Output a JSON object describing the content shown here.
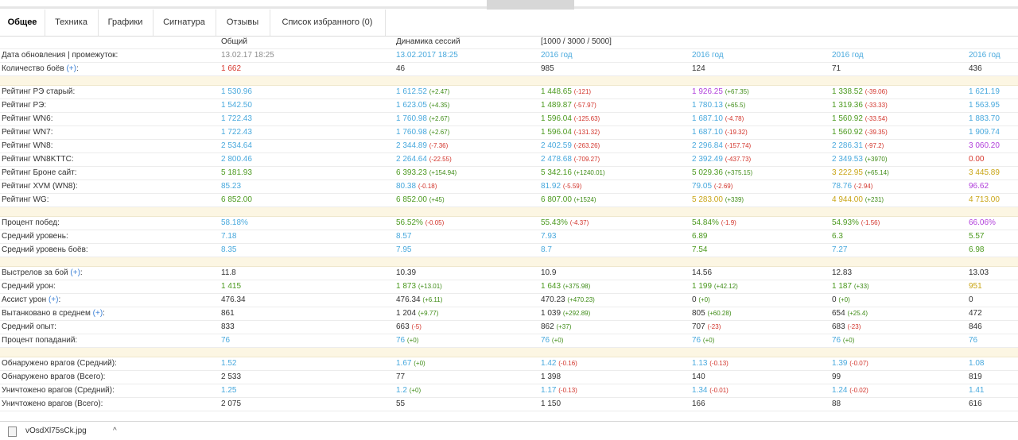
{
  "tabs": [
    "Общее",
    "Техника",
    "Графики",
    "Сигнатура",
    "Отзывы",
    "Список избранного (0)"
  ],
  "header": {
    "col1": "Общий",
    "col2": "Динамика сессий",
    "col3": "[1000 / 3000 / 5000]"
  },
  "rows": [
    {
      "type": "row",
      "label": "Дата обновления | промежуток:",
      "cells": [
        {
          "v": "13.02.17 18:25",
          "c": "gray"
        },
        {
          "v": "13.02.2017 18:25",
          "c": "c-blue"
        },
        {
          "v": "2016 год",
          "c": "c-blue"
        },
        {
          "v": "2016 год",
          "c": "c-blue"
        },
        {
          "v": "2016 год",
          "c": "c-blue"
        },
        {
          "v": "2016 год",
          "c": "c-blue"
        }
      ]
    },
    {
      "type": "row",
      "label": "Количество боёв",
      "plus": "(+)",
      "cells": [
        {
          "v": "1 662",
          "c": "c-red"
        },
        {
          "v": "46",
          "c": "c-dark"
        },
        {
          "v": "985",
          "c": "c-dark"
        },
        {
          "v": "124",
          "c": "c-dark"
        },
        {
          "v": "71",
          "c": "c-dark"
        },
        {
          "v": "436",
          "c": "c-dark"
        }
      ]
    },
    {
      "type": "gap"
    },
    {
      "type": "row",
      "label": "Рейтинг РЭ старый:",
      "cells": [
        {
          "v": "1 530.96",
          "c": "c-blue"
        },
        {
          "v": "1 612.52",
          "c": "c-blue",
          "d": "(+2.47)",
          "dc": "pos"
        },
        {
          "v": "1 448.65",
          "c": "c-green",
          "d": "(-121)",
          "dc": "neg"
        },
        {
          "v": "1 926.25",
          "c": "c-purple",
          "d": "(+67.35)",
          "dc": "pos"
        },
        {
          "v": "1 338.52",
          "c": "c-green",
          "d": "(-39.06)",
          "dc": "neg"
        },
        {
          "v": "1 621.19",
          "c": "c-blue"
        }
      ]
    },
    {
      "type": "row",
      "label": "Рейтинг РЭ:",
      "cells": [
        {
          "v": "1 542.50",
          "c": "c-blue"
        },
        {
          "v": "1 623.05",
          "c": "c-blue",
          "d": "(+4.35)",
          "dc": "pos"
        },
        {
          "v": "1 489.87",
          "c": "c-green",
          "d": "(-57.97)",
          "dc": "neg"
        },
        {
          "v": "1 780.13",
          "c": "c-blue",
          "d": "(+65.5)",
          "dc": "pos"
        },
        {
          "v": "1 319.36",
          "c": "c-green",
          "d": "(-33.33)",
          "dc": "neg"
        },
        {
          "v": "1 563.95",
          "c": "c-blue"
        }
      ]
    },
    {
      "type": "row",
      "label": "Рейтинг WN6:",
      "cells": [
        {
          "v": "1 722.43",
          "c": "c-blue"
        },
        {
          "v": "1 760.98",
          "c": "c-blue",
          "d": "(+2.67)",
          "dc": "pos"
        },
        {
          "v": "1 596.04",
          "c": "c-green",
          "d": "(-125.63)",
          "dc": "neg"
        },
        {
          "v": "1 687.10",
          "c": "c-blue",
          "d": "(-4.78)",
          "dc": "neg"
        },
        {
          "v": "1 560.92",
          "c": "c-green",
          "d": "(-33.54)",
          "dc": "neg"
        },
        {
          "v": "1 883.70",
          "c": "c-blue"
        }
      ]
    },
    {
      "type": "row",
      "label": "Рейтинг WN7:",
      "cells": [
        {
          "v": "1 722.43",
          "c": "c-blue"
        },
        {
          "v": "1 760.98",
          "c": "c-blue",
          "d": "(+2.67)",
          "dc": "pos"
        },
        {
          "v": "1 596.04",
          "c": "c-green",
          "d": "(-131.32)",
          "dc": "neg"
        },
        {
          "v": "1 687.10",
          "c": "c-blue",
          "d": "(-19.32)",
          "dc": "neg"
        },
        {
          "v": "1 560.92",
          "c": "c-green",
          "d": "(-39.35)",
          "dc": "neg"
        },
        {
          "v": "1 909.74",
          "c": "c-blue"
        }
      ]
    },
    {
      "type": "row",
      "label": "Рейтинг WN8:",
      "cells": [
        {
          "v": "2 534.64",
          "c": "c-blue"
        },
        {
          "v": "2 344.89",
          "c": "c-blue",
          "d": "(-7.36)",
          "dc": "neg"
        },
        {
          "v": "2 402.59",
          "c": "c-blue",
          "d": "(-263.26)",
          "dc": "neg"
        },
        {
          "v": "2 296.84",
          "c": "c-blue",
          "d": "(-157.74)",
          "dc": "neg"
        },
        {
          "v": "2 286.31",
          "c": "c-blue",
          "d": "(-97.2)",
          "dc": "neg"
        },
        {
          "v": "3 060.20",
          "c": "c-purple"
        }
      ]
    },
    {
      "type": "row",
      "label": "Рейтинг WN8KTTC:",
      "cells": [
        {
          "v": "2 800.46",
          "c": "c-blue"
        },
        {
          "v": "2 264.64",
          "c": "c-blue",
          "d": "(-22.55)",
          "dc": "neg"
        },
        {
          "v": "2 478.68",
          "c": "c-blue",
          "d": "(-709.27)",
          "dc": "neg"
        },
        {
          "v": "2 392.49",
          "c": "c-blue",
          "d": "(-437.73)",
          "dc": "neg"
        },
        {
          "v": "2 349.53",
          "c": "c-blue",
          "d": "(+3970)",
          "dc": "pos"
        },
        {
          "v": "0.00",
          "c": "c-red"
        }
      ]
    },
    {
      "type": "row",
      "label": "Рейтинг Броне сайт:",
      "cells": [
        {
          "v": "5 181.93",
          "c": "c-green"
        },
        {
          "v": "6 393.23",
          "c": "c-green",
          "d": "(+154.94)",
          "dc": "pos"
        },
        {
          "v": "5 342.16",
          "c": "c-green",
          "d": "(+1240.01)",
          "dc": "pos"
        },
        {
          "v": "5 029.36",
          "c": "c-green",
          "d": "(+375.15)",
          "dc": "pos"
        },
        {
          "v": "3 222.95",
          "c": "c-yellow",
          "d": "(+65.14)",
          "dc": "pos"
        },
        {
          "v": "3 445.89",
          "c": "c-yellow"
        }
      ]
    },
    {
      "type": "row",
      "label": "Рейтинг XVM (WN8):",
      "cells": [
        {
          "v": "85.23",
          "c": "c-blue"
        },
        {
          "v": "80.38",
          "c": "c-blue",
          "d": "(-0.18)",
          "dc": "neg"
        },
        {
          "v": "81.92",
          "c": "c-blue",
          "d": "(-5.59)",
          "dc": "neg"
        },
        {
          "v": "79.05",
          "c": "c-blue",
          "d": "(-2.69)",
          "dc": "neg"
        },
        {
          "v": "78.76",
          "c": "c-blue",
          "d": "(-2.94)",
          "dc": "neg"
        },
        {
          "v": "96.62",
          "c": "c-purple"
        }
      ]
    },
    {
      "type": "row",
      "label": "Рейтинг WG:",
      "cells": [
        {
          "v": "6 852.00",
          "c": "c-green"
        },
        {
          "v": "6 852.00",
          "c": "c-green",
          "d": "(+45)",
          "dc": "pos"
        },
        {
          "v": "6 807.00",
          "c": "c-green",
          "d": "(+1524)",
          "dc": "pos"
        },
        {
          "v": "5 283.00",
          "c": "c-yellow",
          "d": "(+339)",
          "dc": "pos"
        },
        {
          "v": "4 944.00",
          "c": "c-yellow",
          "d": "(+231)",
          "dc": "pos"
        },
        {
          "v": "4 713.00",
          "c": "c-yellow"
        }
      ]
    },
    {
      "type": "gap"
    },
    {
      "type": "row",
      "label": "Процент побед:",
      "cells": [
        {
          "v": "58.18%",
          "c": "c-blue"
        },
        {
          "v": "56.52%",
          "c": "c-green",
          "d": "(-0.05)",
          "dc": "neg"
        },
        {
          "v": "55.43%",
          "c": "c-green",
          "d": "(-4.37)",
          "dc": "neg"
        },
        {
          "v": "54.84%",
          "c": "c-green",
          "d": "(-1.9)",
          "dc": "neg"
        },
        {
          "v": "54.93%",
          "c": "c-green",
          "d": "(-1.56)",
          "dc": "neg"
        },
        {
          "v": "66.06%",
          "c": "c-purple"
        }
      ]
    },
    {
      "type": "row",
      "label": "Средний уровень:",
      "cells": [
        {
          "v": "7.18",
          "c": "c-blue"
        },
        {
          "v": "8.57",
          "c": "c-blue"
        },
        {
          "v": "7.93",
          "c": "c-blue"
        },
        {
          "v": "6.89",
          "c": "c-green"
        },
        {
          "v": "6.3",
          "c": "c-green"
        },
        {
          "v": "5.57",
          "c": "c-green"
        }
      ]
    },
    {
      "type": "row",
      "label": "Средний уровень боёв:",
      "cells": [
        {
          "v": "8.35",
          "c": "c-blue"
        },
        {
          "v": "7.95",
          "c": "c-blue"
        },
        {
          "v": "8.7",
          "c": "c-blue"
        },
        {
          "v": "7.54",
          "c": "c-green"
        },
        {
          "v": "7.27",
          "c": "c-blue"
        },
        {
          "v": "6.98",
          "c": "c-green"
        }
      ]
    },
    {
      "type": "gap"
    },
    {
      "type": "row",
      "label": "Выстрелов за бой",
      "plus": "(+)",
      "cells": [
        {
          "v": "11.8",
          "c": "c-dark"
        },
        {
          "v": "10.39",
          "c": "c-dark"
        },
        {
          "v": "10.9",
          "c": "c-dark"
        },
        {
          "v": "14.56",
          "c": "c-dark"
        },
        {
          "v": "12.83",
          "c": "c-dark"
        },
        {
          "v": "13.03",
          "c": "c-dark"
        }
      ]
    },
    {
      "type": "row",
      "label": "Средний урон:",
      "cells": [
        {
          "v": "1 415",
          "c": "c-green"
        },
        {
          "v": "1 873",
          "c": "c-green",
          "d": "(+13.01)",
          "dc": "pos"
        },
        {
          "v": "1 643",
          "c": "c-green",
          "d": "(+375.98)",
          "dc": "pos"
        },
        {
          "v": "1 199",
          "c": "c-green",
          "d": "(+42.12)",
          "dc": "pos"
        },
        {
          "v": "1 187",
          "c": "c-green",
          "d": "(+33)",
          "dc": "pos"
        },
        {
          "v": "951",
          "c": "c-yellow"
        }
      ]
    },
    {
      "type": "row",
      "label": "Ассист урон",
      "plus": "(+)",
      "cells": [
        {
          "v": "476.34",
          "c": "c-dark"
        },
        {
          "v": "476.34",
          "c": "c-dark",
          "d": "(+6.11)",
          "dc": "pos"
        },
        {
          "v": "470.23",
          "c": "c-dark",
          "d": "(+470.23)",
          "dc": "pos"
        },
        {
          "v": "0",
          "c": "c-dark",
          "d": "(+0)",
          "dc": "zero"
        },
        {
          "v": "0",
          "c": "c-dark",
          "d": "(+0)",
          "dc": "zero"
        },
        {
          "v": "0",
          "c": "c-dark"
        }
      ]
    },
    {
      "type": "row",
      "label": "Вытанковано в среднем",
      "plus": "(+)",
      "cells": [
        {
          "v": "861",
          "c": "c-dark"
        },
        {
          "v": "1 204",
          "c": "c-dark",
          "d": "(+9.77)",
          "dc": "pos"
        },
        {
          "v": "1 039",
          "c": "c-dark",
          "d": "(+292.89)",
          "dc": "pos"
        },
        {
          "v": "805",
          "c": "c-dark",
          "d": "(+60.28)",
          "dc": "pos"
        },
        {
          "v": "654",
          "c": "c-dark",
          "d": "(+25.4)",
          "dc": "pos"
        },
        {
          "v": "472",
          "c": "c-dark"
        }
      ]
    },
    {
      "type": "row",
      "label": "Средний опыт:",
      "cells": [
        {
          "v": "833",
          "c": "c-dark"
        },
        {
          "v": "663",
          "c": "c-dark",
          "d": "(-5)",
          "dc": "neg"
        },
        {
          "v": "862",
          "c": "c-dark",
          "d": "(+37)",
          "dc": "pos"
        },
        {
          "v": "707",
          "c": "c-dark",
          "d": "(-23)",
          "dc": "neg"
        },
        {
          "v": "683",
          "c": "c-dark",
          "d": "(-23)",
          "dc": "neg"
        },
        {
          "v": "846",
          "c": "c-dark"
        }
      ]
    },
    {
      "type": "row",
      "label": "Процент попаданий:",
      "cells": [
        {
          "v": "76",
          "c": "c-blue"
        },
        {
          "v": "76",
          "c": "c-blue",
          "d": "(+0)",
          "dc": "zero"
        },
        {
          "v": "76",
          "c": "c-blue",
          "d": "(+0)",
          "dc": "zero"
        },
        {
          "v": "76",
          "c": "c-blue",
          "d": "(+0)",
          "dc": "zero"
        },
        {
          "v": "76",
          "c": "c-blue",
          "d": "(+0)",
          "dc": "zero"
        },
        {
          "v": "76",
          "c": "c-blue"
        }
      ]
    },
    {
      "type": "gap"
    },
    {
      "type": "row",
      "label": "Обнаружено врагов (Средний):",
      "cells": [
        {
          "v": "1.52",
          "c": "c-blue"
        },
        {
          "v": "1.67",
          "c": "c-blue",
          "d": "(+0)",
          "dc": "zero"
        },
        {
          "v": "1.42",
          "c": "c-blue",
          "d": "(-0.16)",
          "dc": "neg"
        },
        {
          "v": "1.13",
          "c": "c-blue",
          "d": "(-0.13)",
          "dc": "neg"
        },
        {
          "v": "1.39",
          "c": "c-blue",
          "d": "(-0.07)",
          "dc": "neg"
        },
        {
          "v": "1.08",
          "c": "c-blue"
        }
      ]
    },
    {
      "type": "row",
      "label": "Обнаружено врагов (Всего):",
      "cells": [
        {
          "v": "2 533",
          "c": "c-dark"
        },
        {
          "v": "77",
          "c": "c-dark"
        },
        {
          "v": "1 398",
          "c": "c-dark"
        },
        {
          "v": "140",
          "c": "c-dark"
        },
        {
          "v": "99",
          "c": "c-dark"
        },
        {
          "v": "819",
          "c": "c-dark"
        }
      ]
    },
    {
      "type": "row",
      "label": "Уничтожено врагов (Средний):",
      "cells": [
        {
          "v": "1.25",
          "c": "c-blue"
        },
        {
          "v": "1.2",
          "c": "c-blue",
          "d": "(+0)",
          "dc": "zero"
        },
        {
          "v": "1.17",
          "c": "c-blue",
          "d": "(-0.13)",
          "dc": "neg"
        },
        {
          "v": "1.34",
          "c": "c-blue",
          "d": "(-0.01)",
          "dc": "neg"
        },
        {
          "v": "1.24",
          "c": "c-blue",
          "d": "(-0.02)",
          "dc": "neg"
        },
        {
          "v": "1.41",
          "c": "c-blue"
        }
      ]
    },
    {
      "type": "row",
      "label": "Уничтожено врагов (Всего):",
      "cells": [
        {
          "v": "2 075",
          "c": "c-dark"
        },
        {
          "v": "55",
          "c": "c-dark"
        },
        {
          "v": "1 150",
          "c": "c-dark"
        },
        {
          "v": "166",
          "c": "c-dark"
        },
        {
          "v": "88",
          "c": "c-dark"
        },
        {
          "v": "616",
          "c": "c-dark"
        }
      ]
    }
  ],
  "download": {
    "filename": "vOsdXl75sCk.jpg",
    "chevron": "^"
  }
}
